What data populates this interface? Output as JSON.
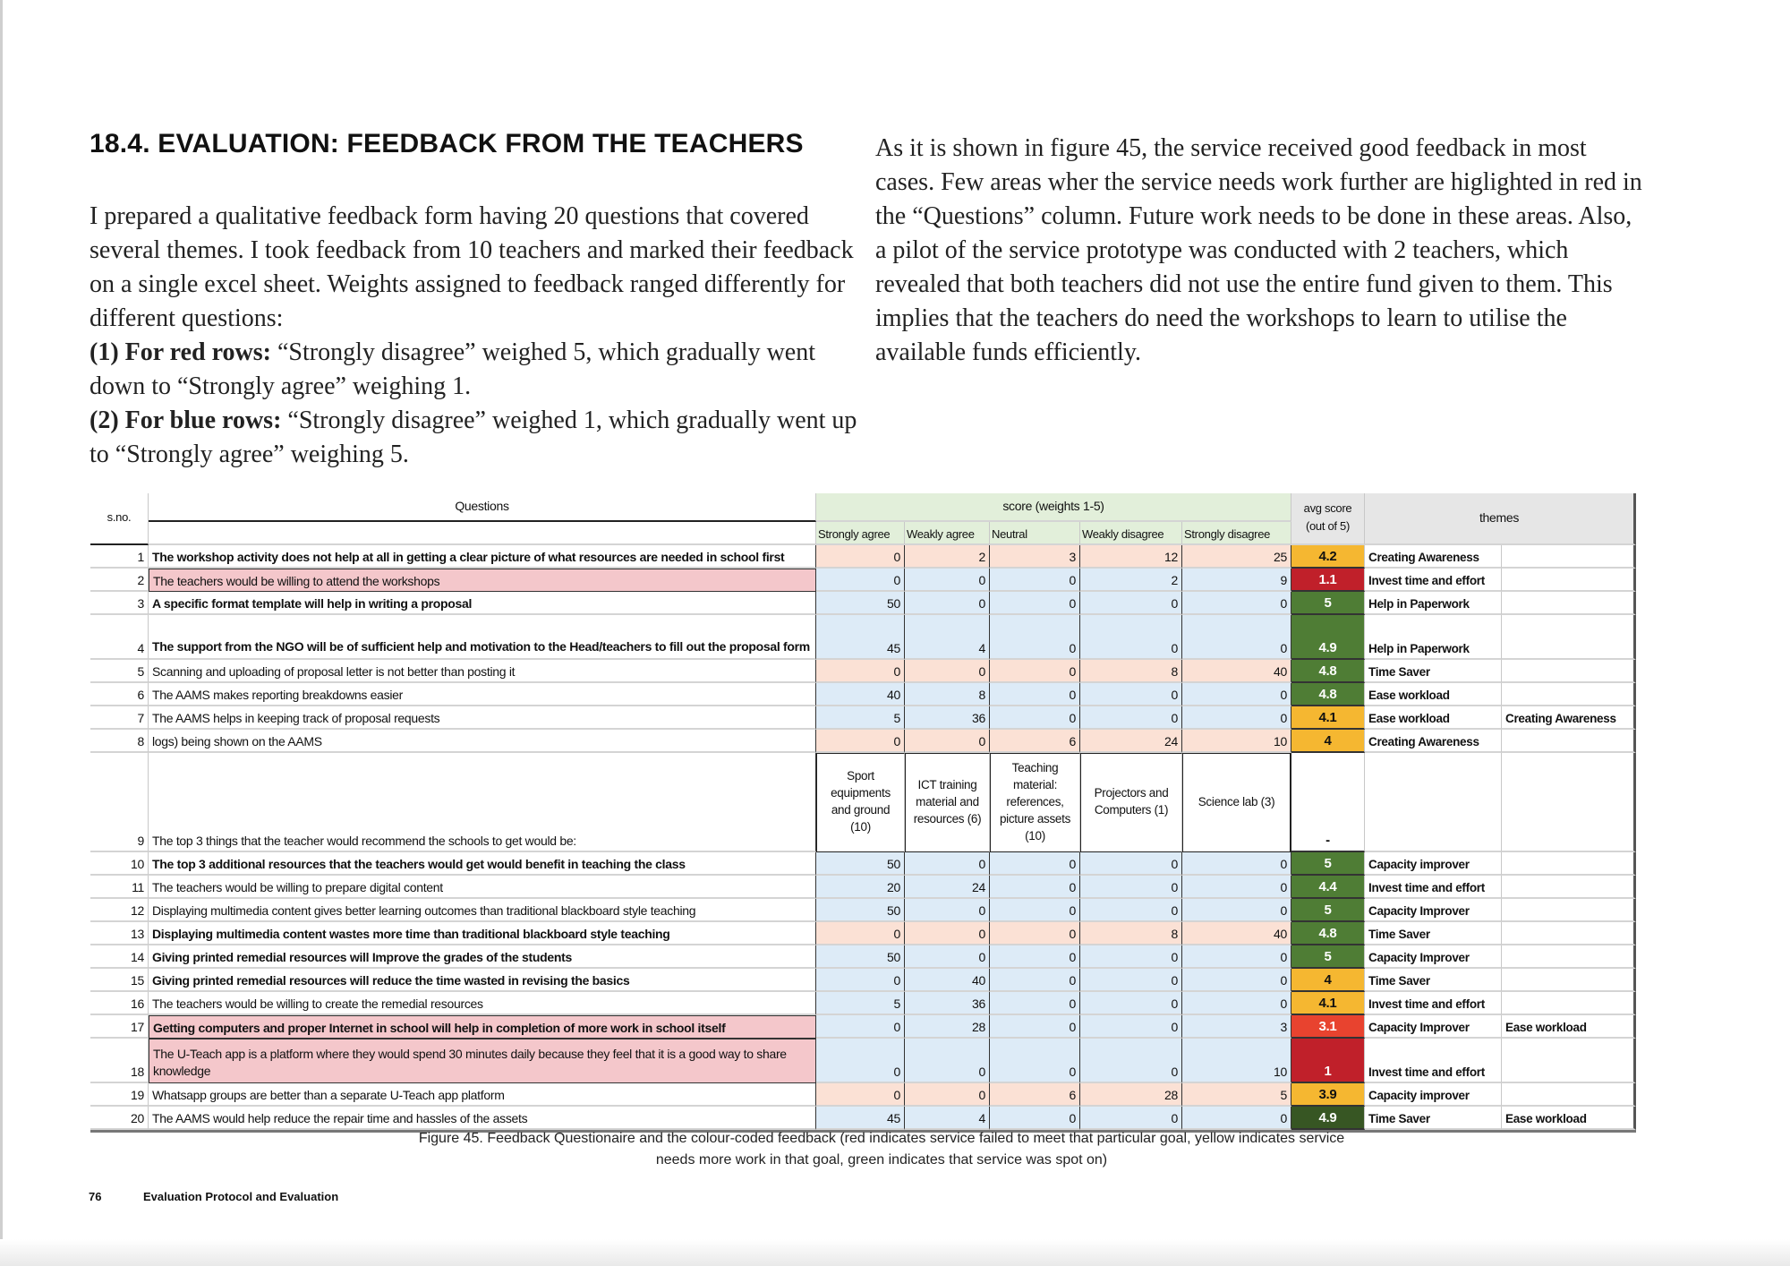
{
  "heading": "18.4. EVALUATION: FEEDBACK FROM THE TEACHERS",
  "left_paragraph": {
    "intro": "I prepared a qualitative feedback form having 20 questions that covered several themes. I took feedback from 10 teachers and marked their feedback on a single excel sheet. Weights assigned to feedback ranged differently for different questions:",
    "red_label": "(1) For red rows:",
    "red_text": " “Strongly disagree” weighed 5, which gradually went down  to “Strongly agree” weighing 1.",
    "blue_label": "(2) For blue rows:",
    "blue_text": " “Strongly disagree” weighed 1, which gradually went up  to “Strongly agree” weighing 5."
  },
  "right_paragraph": "As it is shown in figure 45, the service received good feedback in most cases. Few areas wher the service needs work further are higlighted in red in the “Questions” column. Future work needs to be done in these areas. Also, a pilot of the service prototype was conducted with 2 teachers, which revealed that both teachers did not use the entire fund given to them. This implies that the teachers do need the workshops to learn to utilise the available funds efficiently.",
  "colors": {
    "peach": "#fbe1d5",
    "blue": "#ddebf7",
    "question_pink": "#f4c7cb",
    "header_green": "#e2efda",
    "orange": "#f5b731",
    "red": "#c0202a",
    "light_red": "#e8432f",
    "green": "#4f7d35",
    "dark_green": "#375623"
  },
  "table": {
    "headers": {
      "sno": "s.no.",
      "questions": "Questions",
      "score": "score (weights 1-5)",
      "avg": "avg score\n(out of 5)",
      "themes": "themes",
      "score_cols": [
        "Strongly agree",
        "Weakly agree",
        "Neutral",
        "Weakly disagree",
        "Strongly disagree"
      ]
    },
    "rows": [
      {
        "n": "1",
        "q": "The workshop activity does not help at all in getting a clear picture of what resources are needed in school first",
        "v": [
          "0",
          "2",
          "3",
          "12",
          "25"
        ],
        "avg": "4.2",
        "ac": "orange",
        "t1": "Creating Awareness",
        "t2": "",
        "type": "red",
        "bold": true
      },
      {
        "n": "2",
        "q": "The teachers would be willing to attend the workshops",
        "v": [
          "0",
          "0",
          "0",
          "2",
          "9"
        ],
        "avg": "1.1",
        "ac": "red",
        "t1": "Invest time and effort",
        "t2": "",
        "type": "blue",
        "hl": true
      },
      {
        "n": "3",
        "q": "A specific format template will help in writing a proposal",
        "v": [
          "50",
          "0",
          "0",
          "0",
          "0"
        ],
        "avg": "5",
        "ac": "green",
        "t1": "Help in Paperwork",
        "t2": "",
        "type": "blue",
        "bold": true
      },
      {
        "n": "4",
        "q": "The support from the NGO will be of sufficient help and motivation to the Head/teachers to fill out the proposal form",
        "v": [
          "45",
          "4",
          "0",
          "0",
          "0"
        ],
        "avg": "4.9",
        "ac": "green",
        "t1": "Help in Paperwork",
        "t2": "",
        "type": "blue",
        "bold": true,
        "tall": true
      },
      {
        "n": "5",
        "q": "Scanning and uploading of proposal letter is not better than posting it",
        "v": [
          "0",
          "0",
          "0",
          "8",
          "40"
        ],
        "avg": "4.8",
        "ac": "green",
        "t1": "Time Saver",
        "t2": "",
        "type": "red"
      },
      {
        "n": "6",
        "q": "The AAMS makes reporting breakdowns easier",
        "v": [
          "40",
          "8",
          "0",
          "0",
          "0"
        ],
        "avg": "4.8",
        "ac": "green",
        "t1": "Ease workload",
        "t2": "",
        "type": "blue"
      },
      {
        "n": "7",
        "q": "The AAMS helps in keeping track of proposal requests",
        "v": [
          "5",
          "36",
          "0",
          "0",
          "0"
        ],
        "avg": "4.1",
        "ac": "orange",
        "t1": "Ease workload",
        "t2": "Creating Awareness",
        "type": "blue"
      },
      {
        "n": "8",
        "q": "logs) being shown on the AAMS",
        "v": [
          "0",
          "0",
          "6",
          "24",
          "10"
        ],
        "avg": "4",
        "ac": "orange",
        "t1": "Creating Awareness",
        "t2": "",
        "type": "red"
      },
      {
        "n": "9",
        "q": "The top 3 things that the teacher would recommend the schools to get would be:",
        "v": [
          "Sport equipments and ground (10)",
          "ICT training material and resources (6)",
          "Teaching material: references, picture assets (10)",
          "Projectors and Computers (1)",
          "Science lab (3)"
        ],
        "avg": "-",
        "ac": "none",
        "t1": "",
        "t2": "",
        "type": "special"
      },
      {
        "n": "10",
        "q": "The top 3 additional resources that the teachers would get would benefit in teaching the class",
        "v": [
          "50",
          "0",
          "0",
          "0",
          "0"
        ],
        "avg": "5",
        "ac": "green",
        "t1": "Capacity improver",
        "t2": "",
        "type": "blue",
        "bold": true
      },
      {
        "n": "11",
        "q": "The teachers would be willing to prepare digital content",
        "v": [
          "20",
          "24",
          "0",
          "0",
          "0"
        ],
        "avg": "4.4",
        "ac": "green",
        "t1": "Invest time and effort",
        "t2": "",
        "type": "blue"
      },
      {
        "n": "12",
        "q": "Displaying multimedia content gives better learning outcomes than traditional blackboard style teaching",
        "v": [
          "50",
          "0",
          "0",
          "0",
          "0"
        ],
        "avg": "5",
        "ac": "green",
        "t1": "Capacity Improver",
        "t2": "",
        "type": "blue"
      },
      {
        "n": "13",
        "q": "Displaying multimedia content wastes more time than traditional  blackboard style teaching",
        "v": [
          "0",
          "0",
          "0",
          "8",
          "40"
        ],
        "avg": "4.8",
        "ac": "green",
        "t1": "Time Saver",
        "t2": "",
        "type": "red",
        "bold": true
      },
      {
        "n": "14",
        "q": "Giving printed remedial resources will Improve the grades of the students",
        "v": [
          "50",
          "0",
          "0",
          "0",
          "0"
        ],
        "avg": "5",
        "ac": "green",
        "t1": "Capacity Improver",
        "t2": "",
        "type": "blue",
        "bold": true
      },
      {
        "n": "15",
        "q": "Giving printed remedial resources will reduce the time wasted in revising the basics",
        "v": [
          "0",
          "40",
          "0",
          "0",
          "0"
        ],
        "avg": "4",
        "ac": "orange",
        "t1": "Time Saver",
        "t2": "",
        "type": "blue",
        "bold": true
      },
      {
        "n": "16",
        "q": "The teachers would be willing to create the remedial resources",
        "v": [
          "5",
          "36",
          "0",
          "0",
          "0"
        ],
        "avg": "4.1",
        "ac": "orange",
        "t1": "Invest time and effort",
        "t2": "",
        "type": "blue"
      },
      {
        "n": "17",
        "q": "Getting computers and proper Internet in school will help in completion of more work in school itself",
        "v": [
          "0",
          "28",
          "0",
          "0",
          "3"
        ],
        "avg": "3.1",
        "ac": "light_red",
        "t1": "Capacity Improver",
        "t2": "Ease workload",
        "type": "blue",
        "hl": true,
        "bold": true
      },
      {
        "n": "18",
        "q": "The U-Teach app is a platform where they would spend 30 minutes daily because they feel that it is a good way to share knowledge",
        "v": [
          "0",
          "0",
          "0",
          "0",
          "10"
        ],
        "avg": "1",
        "ac": "red",
        "t1": "Invest time and effort",
        "t2": "",
        "type": "blue",
        "hl": true,
        "tall": true
      },
      {
        "n": "19",
        "q": "Whatsapp groups are better than a separate U-Teach app platform",
        "v": [
          "0",
          "0",
          "6",
          "28",
          "5"
        ],
        "avg": "3.9",
        "ac": "orange",
        "t1": "Capacity improver",
        "t2": "",
        "type": "red"
      },
      {
        "n": "20",
        "q": "The AAMS would help reduce the repair time and hassles of the assets",
        "v": [
          "45",
          "4",
          "0",
          "0",
          "0"
        ],
        "avg": "4.9",
        "ac": "dark_green",
        "t1": "Time Saver",
        "t2": "Ease workload",
        "type": "blue"
      }
    ]
  },
  "caption": "Figure 45. Feedback Questionaire and the colour-coded feedback (red indicates service failed to meet that particular goal, yellow indicates service needs more work in that goal, green indicates that service was spot on)",
  "footer": {
    "page_number": "76",
    "section": "Evaluation Protocol and Evaluation"
  }
}
